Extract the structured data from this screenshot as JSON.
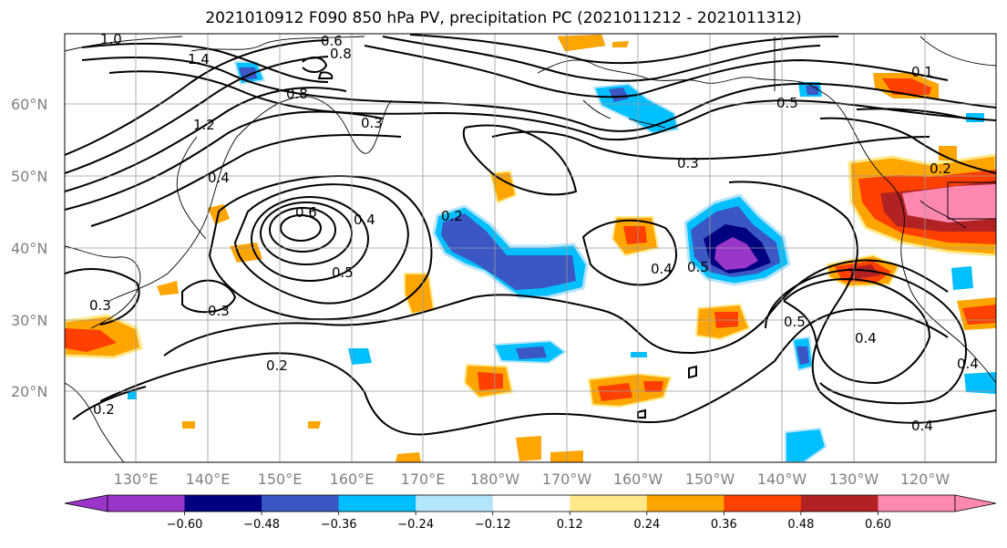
{
  "title": "2021010912 F090 850 hPa PV, precipitation PC (2021011212 - 2021011312)",
  "lat_labels": [
    "60°N",
    "50°N",
    "40°N",
    "30°N",
    "20°N"
  ],
  "lon_labels": [
    "130°E",
    "140°E",
    "150°E",
    "160°E",
    "170°E",
    "180°W",
    "170°W",
    "160°W",
    "150°W",
    "140°W",
    "130°W",
    "120°W"
  ],
  "colorbar": {
    "colors": [
      "#9a35c9",
      "#000080",
      "#3a57c4",
      "#00bfff",
      "#b3e5fc",
      "#ffffff",
      "#ffe98a",
      "#ffa500",
      "#ff4000",
      "#b22222",
      "#ff88b0"
    ],
    "ticks": [
      "−0.60",
      "−0.48",
      "−0.36",
      "−0.24",
      "−0.12",
      "0.12",
      "0.24",
      "0.36",
      "0.48",
      "0.60"
    ]
  },
  "contour_labels": [
    {
      "text": "1.0"
    },
    {
      "text": "1.4"
    },
    {
      "text": "0.8"
    },
    {
      "text": "0.6"
    },
    {
      "text": "0.8"
    },
    {
      "text": "1.2"
    },
    {
      "text": "0.4"
    },
    {
      "text": "0.6"
    },
    {
      "text": "0.4"
    },
    {
      "text": "0.5"
    },
    {
      "text": "0.3"
    },
    {
      "text": "0.3"
    },
    {
      "text": "0.2"
    },
    {
      "text": "0.2"
    },
    {
      "text": "0.2"
    },
    {
      "text": "0.3"
    },
    {
      "text": "0.4"
    },
    {
      "text": "0.5"
    },
    {
      "text": "0.5"
    },
    {
      "text": "0.4"
    },
    {
      "text": "0.4"
    },
    {
      "text": "0.4"
    },
    {
      "text": "0.5"
    },
    {
      "text": "0.2"
    },
    {
      "text": "0.1"
    },
    {
      "text": "0.3"
    }
  ]
}
